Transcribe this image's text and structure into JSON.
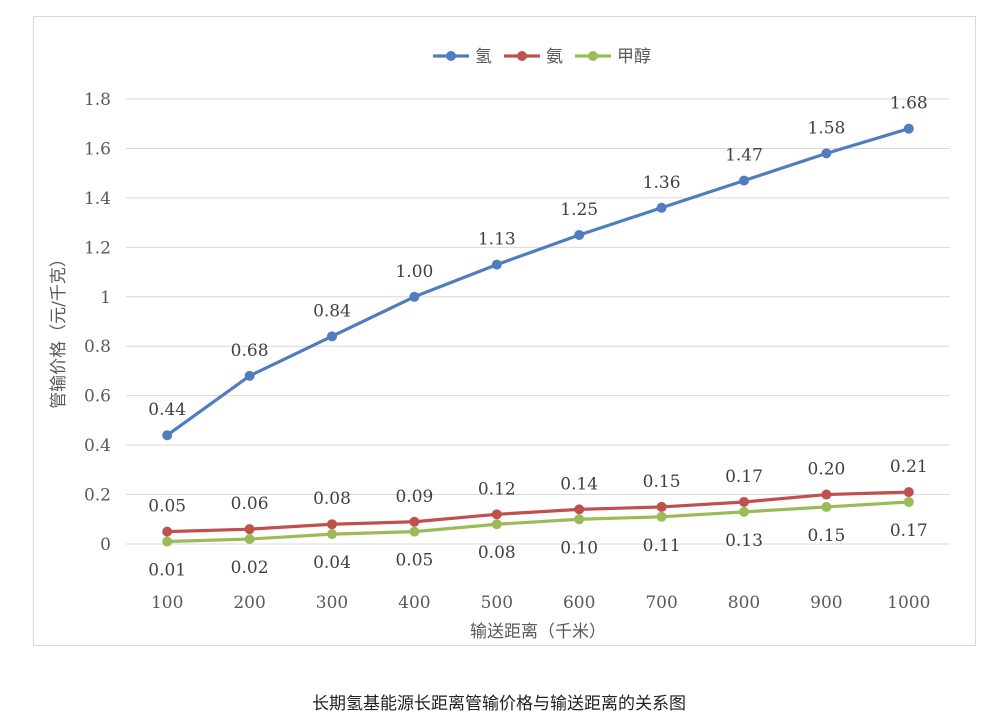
{
  "caption": "长期氢基能源长距离管输价格与输送距离的关系图",
  "chart_data": {
    "type": "line",
    "xlabel": "输送距离（千米）",
    "ylabel": "管输价格（元/千克）",
    "categories": [
      "100",
      "200",
      "300",
      "400",
      "500",
      "600",
      "700",
      "800",
      "900",
      "1000"
    ],
    "ylim": [
      0,
      1.8
    ],
    "yticks": [
      "0",
      "0.2",
      "0.4",
      "0.6",
      "0.8",
      "1",
      "1.2",
      "1.4",
      "1.6",
      "1.8"
    ],
    "ytick_values": [
      0,
      0.2,
      0.4,
      0.6,
      0.8,
      1.0,
      1.2,
      1.4,
      1.6,
      1.8
    ],
    "grid": "horizontal",
    "legend_position": "top",
    "series": [
      {
        "name": "氢",
        "color": "#4f7dbf",
        "values": [
          0.44,
          0.68,
          0.84,
          1.0,
          1.13,
          1.25,
          1.36,
          1.47,
          1.58,
          1.68
        ],
        "labels": [
          "0.44",
          "0.68",
          "0.84",
          "1.00",
          "1.13",
          "1.25",
          "1.36",
          "1.47",
          "1.58",
          "1.68"
        ],
        "label_position": "above"
      },
      {
        "name": "氨",
        "color": "#c0504d",
        "values": [
          0.05,
          0.06,
          0.08,
          0.09,
          0.12,
          0.14,
          0.15,
          0.17,
          0.2,
          0.21
        ],
        "labels": [
          "0.05",
          "0.06",
          "0.08",
          "0.09",
          "0.12",
          "0.14",
          "0.15",
          "0.17",
          "0.20",
          "0.21"
        ],
        "label_position": "above"
      },
      {
        "name": "甲醇",
        "color": "#9bbb59",
        "values": [
          0.01,
          0.02,
          0.04,
          0.05,
          0.08,
          0.1,
          0.11,
          0.13,
          0.15,
          0.17
        ],
        "labels": [
          "0.01",
          "0.02",
          "0.04",
          "0.05",
          "0.08",
          "0.10",
          "0.11",
          "0.13",
          "0.15",
          "0.17"
        ],
        "label_position": "below"
      }
    ]
  }
}
